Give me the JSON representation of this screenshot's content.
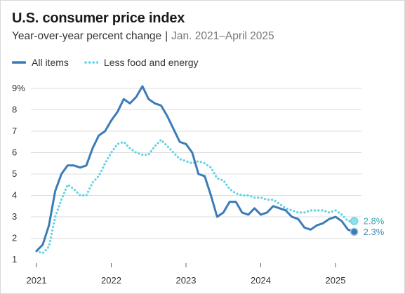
{
  "header": {
    "title": "U.S. consumer price index",
    "subtitle": "Year-over-year percent change",
    "separator": "|",
    "date_range": "Jan. 2021–April 2025"
  },
  "colors": {
    "all_items": "#3b7bb8",
    "core": "#5fd3e6",
    "all_items_marker": "#3b7bb8",
    "core_marker": "#8fe0ee",
    "all_items_label": "#4a86b4",
    "core_label": "#3aaab5",
    "grid": "#dcdcdc",
    "text": "#333333"
  },
  "chart_data": {
    "type": "line",
    "title": "U.S. consumer price index",
    "subtitle": "Year-over-year percent change | Jan. 2021–April 2025",
    "xlabel": "",
    "ylabel": "",
    "x": [
      "2021-01",
      "2021-02",
      "2021-03",
      "2021-04",
      "2021-05",
      "2021-06",
      "2021-07",
      "2021-08",
      "2021-09",
      "2021-10",
      "2021-11",
      "2021-12",
      "2022-01",
      "2022-02",
      "2022-03",
      "2022-04",
      "2022-05",
      "2022-06",
      "2022-07",
      "2022-08",
      "2022-09",
      "2022-10",
      "2022-11",
      "2022-12",
      "2023-01",
      "2023-02",
      "2023-03",
      "2023-04",
      "2023-05",
      "2023-06",
      "2023-07",
      "2023-08",
      "2023-09",
      "2023-10",
      "2023-11",
      "2023-12",
      "2024-01",
      "2024-02",
      "2024-03",
      "2024-04",
      "2024-05",
      "2024-06",
      "2024-07",
      "2024-08",
      "2024-09",
      "2024-10",
      "2024-11",
      "2024-12",
      "2025-01",
      "2025-02",
      "2025-03",
      "2025-04"
    ],
    "series": [
      {
        "name": "All items",
        "style": "solid",
        "values": [
          1.4,
          1.7,
          2.6,
          4.2,
          5.0,
          5.4,
          5.4,
          5.3,
          5.4,
          6.2,
          6.8,
          7.0,
          7.5,
          7.9,
          8.5,
          8.3,
          8.6,
          9.1,
          8.5,
          8.3,
          8.2,
          7.7,
          7.1,
          6.5,
          6.4,
          6.0,
          5.0,
          4.9,
          4.0,
          3.0,
          3.2,
          3.7,
          3.7,
          3.2,
          3.1,
          3.4,
          3.1,
          3.2,
          3.5,
          3.4,
          3.3,
          3.0,
          2.9,
          2.5,
          2.4,
          2.6,
          2.7,
          2.9,
          3.0,
          2.8,
          2.4,
          2.3
        ]
      },
      {
        "name": "Less food and energy",
        "style": "dotted",
        "values": [
          1.4,
          1.3,
          1.6,
          3.0,
          3.8,
          4.5,
          4.3,
          4.0,
          4.0,
          4.6,
          4.9,
          5.5,
          6.0,
          6.4,
          6.5,
          6.2,
          6.0,
          5.9,
          5.9,
          6.3,
          6.6,
          6.3,
          6.0,
          5.7,
          5.6,
          5.5,
          5.6,
          5.5,
          5.3,
          4.8,
          4.7,
          4.3,
          4.1,
          4.0,
          4.0,
          3.9,
          3.9,
          3.8,
          3.8,
          3.6,
          3.4,
          3.3,
          3.2,
          3.2,
          3.3,
          3.3,
          3.3,
          3.2,
          3.3,
          3.1,
          2.8,
          2.8
        ]
      }
    ],
    "end_labels": [
      {
        "series": "Less food and energy",
        "text": "2.8%"
      },
      {
        "series": "All items",
        "text": "2.3%"
      }
    ],
    "ylim": [
      1,
      9
    ],
    "yticks": [
      {
        "value": 9,
        "label": "9%"
      },
      {
        "value": 8,
        "label": "8"
      },
      {
        "value": 7,
        "label": "7"
      },
      {
        "value": 6,
        "label": "6"
      },
      {
        "value": 5,
        "label": "5"
      },
      {
        "value": 4,
        "label": "4"
      },
      {
        "value": 3,
        "label": "3"
      },
      {
        "value": 2,
        "label": "2"
      },
      {
        "value": 1,
        "label": "1"
      }
    ],
    "xticks": [
      {
        "value": "2021-01",
        "label": "2021"
      },
      {
        "value": "2022-01",
        "label": "2022"
      },
      {
        "value": "2023-01",
        "label": "2023"
      },
      {
        "value": "2024-01",
        "label": "2024"
      },
      {
        "value": "2025-01",
        "label": "2025"
      }
    ],
    "grid": "horizontal",
    "legend_position": "top-left"
  }
}
